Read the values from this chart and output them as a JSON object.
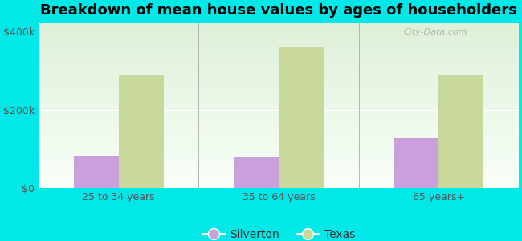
{
  "title": "Breakdown of mean house values by ages of householders",
  "categories": [
    "25 to 34 years",
    "35 to 64 years",
    "65 years+"
  ],
  "silverton_values": [
    82000,
    78000,
    128000
  ],
  "texas_values": [
    290000,
    360000,
    290000
  ],
  "silverton_color": "#c9a0dc",
  "texas_color": "#c8d89a",
  "background_color": "#00e8e8",
  "plot_bg_color_top": "#dff0d8",
  "plot_bg_color_bottom": "#f8fff8",
  "ylim": [
    0,
    420000
  ],
  "yticks": [
    0,
    200000,
    400000
  ],
  "ytick_labels": [
    "$0",
    "$200k",
    "$400k"
  ],
  "legend_labels": [
    "Silverton",
    "Texas"
  ],
  "bar_width": 0.28,
  "title_fontsize": 13,
  "tick_fontsize": 9,
  "legend_fontsize": 10,
  "watermark": "City-Data.com"
}
